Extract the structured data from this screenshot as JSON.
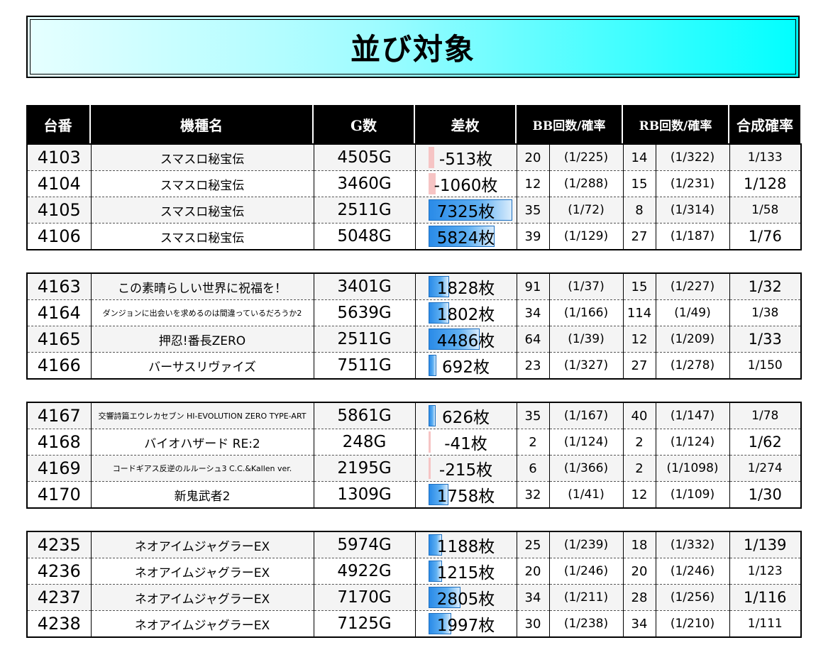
{
  "title": "並び対象",
  "headers": [
    "台番",
    "機種名",
    "G数",
    "差枚",
    "BB回数/確率",
    "RB回数/確率",
    "合成確率"
  ],
  "groups": [
    [
      {
        "no": "4103",
        "name": "スマスロ秘宝伝",
        "g": "4505G",
        "diff": "-513枚",
        "diff_value": -513,
        "bb": "20",
        "bb_rate": "(1/225)",
        "rb": "14",
        "rb_rate": "(1/322)",
        "combined": "1/133"
      },
      {
        "no": "4104",
        "name": "スマスロ秘宝伝",
        "g": "3460G",
        "diff": "-1060枚",
        "diff_value": -1060,
        "bb": "12",
        "bb_rate": "(1/288)",
        "rb": "15",
        "rb_rate": "(1/231)",
        "combined": "1/128"
      },
      {
        "no": "4105",
        "name": "スマスロ秘宝伝",
        "g": "2511G",
        "diff": "7325枚",
        "diff_value": 7325,
        "bb": "35",
        "bb_rate": "(1/72)",
        "rb": "8",
        "rb_rate": "(1/314)",
        "combined": "1/58"
      },
      {
        "no": "4106",
        "name": "スマスロ秘宝伝",
        "g": "5048G",
        "diff": "5824枚",
        "diff_value": 5824,
        "bb": "39",
        "bb_rate": "(1/129)",
        "rb": "27",
        "rb_rate": "(1/187)",
        "combined": "1/76"
      }
    ],
    [
      {
        "no": "4163",
        "name": "この素晴らしい世界に祝福を！",
        "g": "3401G",
        "diff": "1828枚",
        "diff_value": 1828,
        "bb": "91",
        "bb_rate": "(1/37)",
        "rb": "15",
        "rb_rate": "(1/227)",
        "combined": "1/32"
      },
      {
        "no": "4164",
        "name": "ダンジョンに出会いを求めるのは間違っているだろうか2",
        "g": "5639G",
        "diff": "1802枚",
        "diff_value": 1802,
        "bb": "34",
        "bb_rate": "(1/166)",
        "rb": "114",
        "rb_rate": "(1/49)",
        "combined": "1/38"
      },
      {
        "no": "4165",
        "name": "押忍!番長ZERO",
        "g": "2511G",
        "diff": "4486枚",
        "diff_value": 4486,
        "bb": "64",
        "bb_rate": "(1/39)",
        "rb": "12",
        "rb_rate": "(1/209)",
        "combined": "1/33"
      },
      {
        "no": "4166",
        "name": "バーサスリヴァイズ",
        "g": "7511G",
        "diff": "692枚",
        "diff_value": 692,
        "bb": "23",
        "bb_rate": "(1/327)",
        "rb": "27",
        "rb_rate": "(1/278)",
        "combined": "1/150"
      }
    ],
    [
      {
        "no": "4167",
        "name": "交響詩篇エウレカセブン HI-EVOLUTION ZERO TYPE-ART",
        "g": "5861G",
        "diff": "626枚",
        "diff_value": 626,
        "bb": "35",
        "bb_rate": "(1/167)",
        "rb": "40",
        "rb_rate": "(1/147)",
        "combined": "1/78"
      },
      {
        "no": "4168",
        "name": "バイオハザード RE:2",
        "g": "248G",
        "diff": "-41枚",
        "diff_value": -41,
        "bb": "2",
        "bb_rate": "(1/124)",
        "rb": "2",
        "rb_rate": "(1/124)",
        "combined": "1/62"
      },
      {
        "no": "4169",
        "name": "コードギアス反逆のルルーシュ3 C.C.&Kallen ver.",
        "g": "2195G",
        "diff": "-215枚",
        "diff_value": -215,
        "bb": "6",
        "bb_rate": "(1/366)",
        "rb": "2",
        "rb_rate": "(1/1098)",
        "combined": "1/274"
      },
      {
        "no": "4170",
        "name": "新鬼武者2",
        "g": "1309G",
        "diff": "1758枚",
        "diff_value": 1758,
        "bb": "32",
        "bb_rate": "(1/41)",
        "rb": "12",
        "rb_rate": "(1/109)",
        "combined": "1/30"
      }
    ],
    [
      {
        "no": "4235",
        "name": "ネオアイムジャグラーEX",
        "g": "5974G",
        "diff": "1188枚",
        "diff_value": 1188,
        "bb": "25",
        "bb_rate": "(1/239)",
        "rb": "18",
        "rb_rate": "(1/332)",
        "combined": "1/139"
      },
      {
        "no": "4236",
        "name": "ネオアイムジャグラーEX",
        "g": "4922G",
        "diff": "1215枚",
        "diff_value": 1215,
        "bb": "20",
        "bb_rate": "(1/246)",
        "rb": "20",
        "rb_rate": "(1/246)",
        "combined": "1/123"
      },
      {
        "no": "4237",
        "name": "ネオアイムジャグラーEX",
        "g": "7170G",
        "diff": "2805枚",
        "diff_value": 2805,
        "bb": "34",
        "bb_rate": "(1/211)",
        "rb": "28",
        "rb_rate": "(1/256)",
        "combined": "1/116"
      },
      {
        "no": "4238",
        "name": "ネオアイムジャグラーEX",
        "g": "7125G",
        "diff": "1997枚",
        "diff_value": 1997,
        "bb": "30",
        "bb_rate": "(1/238)",
        "rb": "34",
        "rb_rate": "(1/210)",
        "combined": "1/111"
      }
    ]
  ]
}
